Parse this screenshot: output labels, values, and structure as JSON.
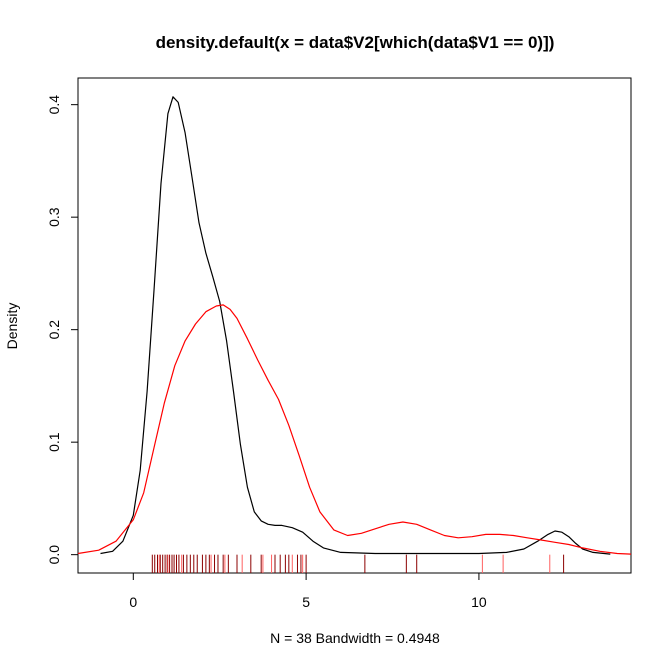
{
  "chart_data": {
    "type": "line",
    "title": "density.default(x = data$V2[which(data$V1 == 0)])",
    "xlabel": "N = 38   Bandwidth = 0.4948",
    "ylabel": "Density",
    "xlim": [
      -1.6,
      14.4
    ],
    "ylim": [
      -0.0163,
      0.4237
    ],
    "x_ticks": [
      0,
      5,
      10
    ],
    "y_ticks": [
      0.0,
      0.1,
      0.2,
      0.3,
      0.4
    ],
    "x_tick_labels": [
      "0",
      "5",
      "10"
    ],
    "y_tick_labels": [
      "0.0",
      "0.1",
      "0.2",
      "0.3",
      "0.4"
    ],
    "grid": false,
    "legend": "none",
    "series": [
      {
        "color": "#000000",
        "x": [
          -0.95,
          -0.6,
          -0.3,
          0.0,
          0.2,
          0.4,
          0.6,
          0.8,
          1.0,
          1.15,
          1.3,
          1.5,
          1.7,
          1.9,
          2.1,
          2.3,
          2.5,
          2.7,
          2.9,
          3.1,
          3.3,
          3.5,
          3.7,
          3.9,
          4.1,
          4.3,
          4.6,
          4.9,
          5.2,
          5.5,
          6.0,
          7.0,
          8.0,
          9.0,
          10.0,
          10.8,
          11.3,
          11.7,
          12.0,
          12.2,
          12.4,
          12.6,
          12.8,
          13.0,
          13.3,
          13.8
        ],
        "y": [
          0.001,
          0.003,
          0.012,
          0.035,
          0.075,
          0.145,
          0.235,
          0.33,
          0.392,
          0.407,
          0.402,
          0.375,
          0.335,
          0.295,
          0.268,
          0.247,
          0.225,
          0.19,
          0.145,
          0.098,
          0.06,
          0.038,
          0.03,
          0.027,
          0.026,
          0.026,
          0.024,
          0.02,
          0.012,
          0.006,
          0.002,
          0.001,
          0.001,
          0.001,
          0.001,
          0.002,
          0.005,
          0.012,
          0.018,
          0.021,
          0.02,
          0.016,
          0.01,
          0.005,
          0.002,
          0.0005
        ]
      },
      {
        "color": "#ff0000",
        "x": [
          -1.6,
          -1.0,
          -0.5,
          0.0,
          0.3,
          0.6,
          0.9,
          1.2,
          1.5,
          1.8,
          2.1,
          2.4,
          2.6,
          2.8,
          3.0,
          3.3,
          3.6,
          3.9,
          4.2,
          4.5,
          4.8,
          5.1,
          5.4,
          5.8,
          6.2,
          6.6,
          7.0,
          7.4,
          7.8,
          8.2,
          8.6,
          9.0,
          9.4,
          9.8,
          10.2,
          10.6,
          11.0,
          11.4,
          11.8,
          12.2,
          12.6,
          13.0,
          13.5,
          14.0,
          14.4
        ],
        "y": [
          0.001,
          0.004,
          0.012,
          0.031,
          0.055,
          0.095,
          0.135,
          0.168,
          0.19,
          0.205,
          0.216,
          0.221,
          0.222,
          0.218,
          0.21,
          0.192,
          0.173,
          0.155,
          0.138,
          0.115,
          0.088,
          0.06,
          0.038,
          0.022,
          0.017,
          0.019,
          0.023,
          0.027,
          0.029,
          0.027,
          0.022,
          0.017,
          0.015,
          0.016,
          0.018,
          0.018,
          0.017,
          0.015,
          0.013,
          0.011,
          0.009,
          0.006,
          0.003,
          0.001,
          0.0005
        ]
      }
    ],
    "rug": {
      "values": [
        0.55,
        0.62,
        0.7,
        0.78,
        0.85,
        0.92,
        0.98,
        1.05,
        1.12,
        1.18,
        1.25,
        1.32,
        1.45,
        1.55,
        1.65,
        1.75,
        1.85,
        2.0,
        2.1,
        2.2,
        2.35,
        2.45,
        2.6,
        2.75,
        3.0,
        3.4,
        3.7,
        4.1,
        4.25,
        4.4,
        4.5,
        4.75,
        4.85,
        5.0,
        6.7,
        7.9,
        8.2,
        12.45
      ],
      "red_values": [
        0.75,
        1.0,
        1.4,
        2.25,
        2.65,
        3.15,
        3.75,
        4.0,
        4.6,
        4.9,
        10.1,
        10.7,
        12.05
      ],
      "color": "#8b0000"
    }
  }
}
